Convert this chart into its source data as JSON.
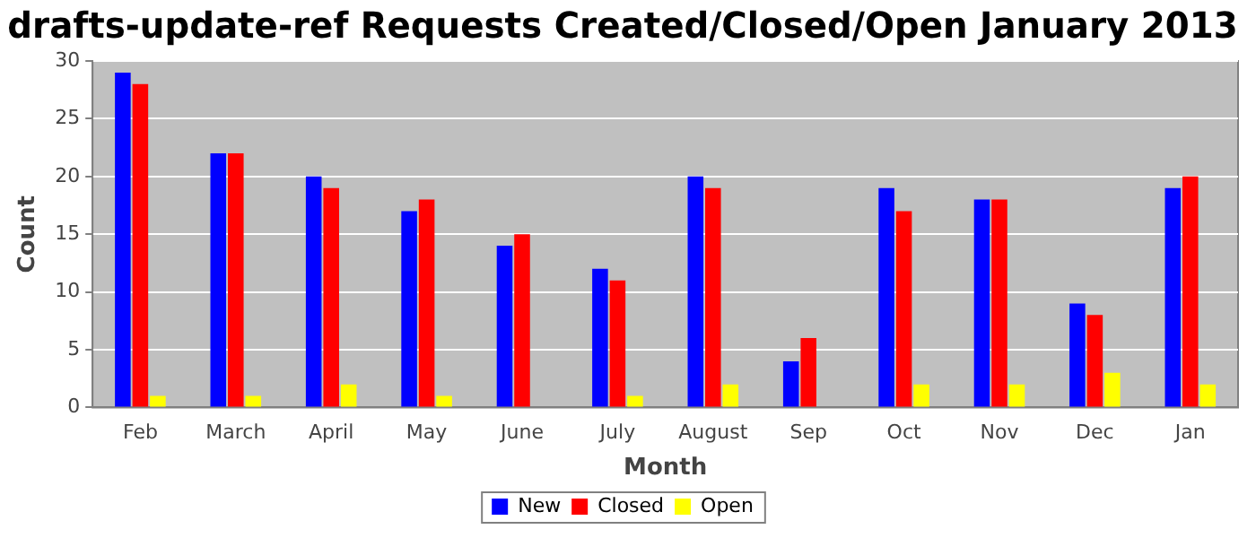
{
  "chart_data": {
    "type": "bar",
    "title": "drafts-update-ref Requests Created/Closed/Open January 2013",
    "xlabel": "Month",
    "ylabel": "Count",
    "categories": [
      "Feb",
      "March",
      "April",
      "May",
      "June",
      "July",
      "August",
      "Sep",
      "Oct",
      "Nov",
      "Dec",
      "Jan"
    ],
    "series": [
      {
        "name": "New",
        "color": "#0000ff",
        "values": [
          29,
          22,
          20,
          17,
          14,
          12,
          20,
          4,
          19,
          18,
          9,
          19
        ]
      },
      {
        "name": "Closed",
        "color": "#ff0000",
        "values": [
          28,
          22,
          19,
          18,
          15,
          11,
          19,
          6,
          17,
          18,
          8,
          20
        ]
      },
      {
        "name": "Open",
        "color": "#ffff00",
        "values": [
          1,
          1,
          2,
          1,
          0,
          1,
          2,
          0,
          2,
          2,
          3,
          2
        ]
      }
    ],
    "ylim": [
      0,
      30
    ],
    "yticks": [
      0,
      5,
      10,
      15,
      20,
      25,
      30
    ],
    "grid": "y",
    "legend": "bottom"
  }
}
